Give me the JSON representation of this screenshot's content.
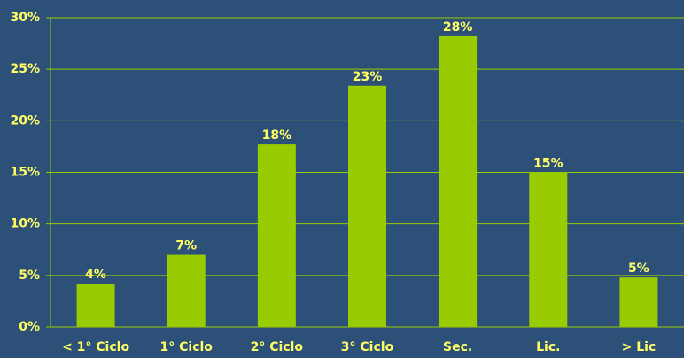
{
  "chart_data": {
    "type": "bar",
    "categories": [
      "< 1° Ciclo",
      "1° Ciclo",
      "2° Ciclo",
      "3° Ciclo",
      "Sec.",
      "Lic.",
      "> Lic"
    ],
    "values": [
      4.2,
      7.0,
      17.7,
      23.4,
      28.2,
      15.0,
      4.8
    ],
    "value_labels": [
      "4%",
      "7%",
      "18%",
      "23%",
      "28%",
      "15%",
      "5%"
    ],
    "color": "#99cc00",
    "ylim": [
      0,
      30
    ],
    "yticks": [
      {
        "value": 0,
        "label": "0%"
      },
      {
        "value": 5,
        "label": "5%"
      },
      {
        "value": 10,
        "label": "10%"
      },
      {
        "value": 15,
        "label": "15%"
      },
      {
        "value": 20,
        "label": "20%"
      },
      {
        "value": 25,
        "label": "25%"
      },
      {
        "value": 30,
        "label": "30%"
      }
    ],
    "grid": true
  }
}
